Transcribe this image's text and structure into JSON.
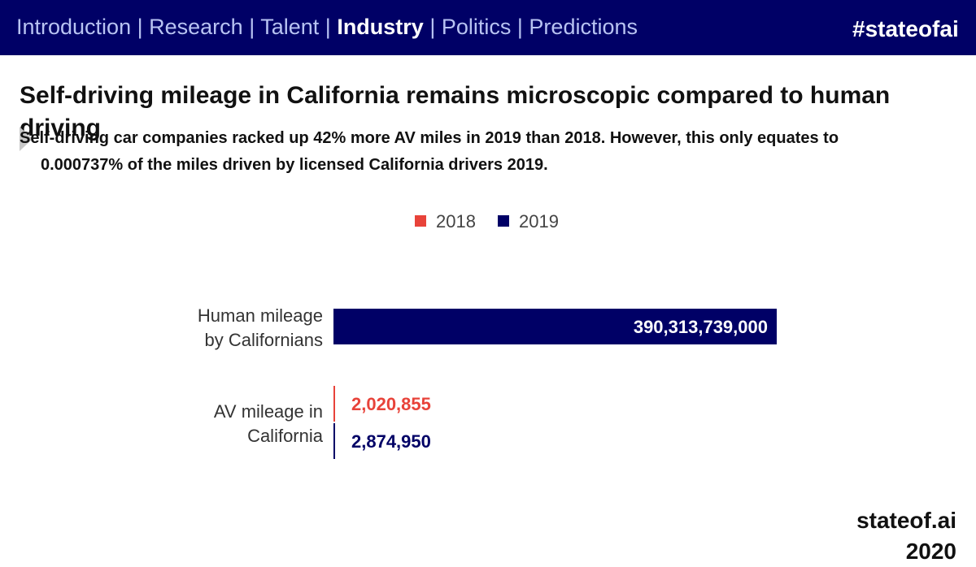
{
  "nav": {
    "items": [
      {
        "label": "Introduction",
        "active": false
      },
      {
        "label": "Research",
        "active": false
      },
      {
        "label": "Talent",
        "active": false
      },
      {
        "label": "Industry",
        "active": true
      },
      {
        "label": "Politics",
        "active": false
      },
      {
        "label": "Predictions",
        "active": false
      }
    ],
    "separator": " | ",
    "hashtag": "#stateofai"
  },
  "slide": {
    "title": "Self-driving mileage in California remains microscopic compared to human driving",
    "subtitle_line1": "Self-driving car companies racked up 42% more AV miles in 2019 than 2018. However, this only equates to",
    "subtitle_line2": "0.000737% of the miles driven by licensed California drivers 2019."
  },
  "footer": {
    "text": "stateof.ai 2020"
  },
  "colors": {
    "navy": "#000066",
    "red": "#e8433a",
    "nav_text": "#b8c3f2"
  },
  "chart_data": {
    "type": "bar",
    "orientation": "horizontal",
    "categories": [
      "Human mileage by Californians",
      "AV mileage in California"
    ],
    "category_label_lines": [
      [
        "Human mileage",
        "by Californians"
      ],
      [
        "AV mileage in",
        "California"
      ]
    ],
    "series": [
      {
        "name": "2018",
        "color": "#e8433a",
        "values": [
          null,
          2020855
        ]
      },
      {
        "name": "2019",
        "color": "#000066",
        "values": [
          390313739000,
          2874950
        ]
      }
    ],
    "data_labels": [
      {
        "category": "Human mileage by Californians",
        "series": "2019",
        "text": "390,313,739,000"
      },
      {
        "category": "AV mileage in California",
        "series": "2018",
        "text": "2,020,855"
      },
      {
        "category": "AV mileage in California",
        "series": "2019",
        "text": "2,874,950"
      }
    ],
    "xlim": [
      0,
      390313739000
    ],
    "legend_position": "top-center",
    "grid": false,
    "title": "",
    "xlabel": "",
    "ylabel": ""
  }
}
